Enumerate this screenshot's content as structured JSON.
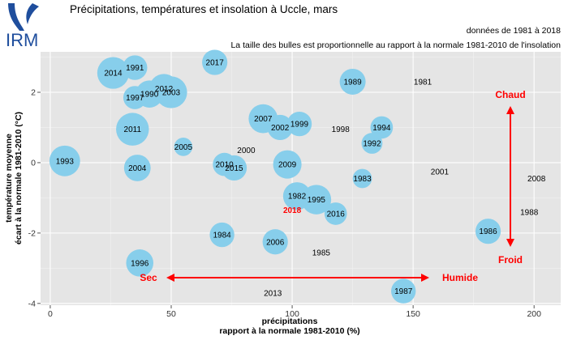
{
  "header": {
    "logo_text": "IRM",
    "title": "Précipitations, températures et insolation à Uccle, mars",
    "note_period": "données de 1981 à 2018",
    "note_bubbles": "La taille des bulles est proportionnelle au rapport à la normale 1981-2010 de l'insolation"
  },
  "colors": {
    "panel": "#e5e5e5",
    "grid": "#ffffff",
    "bubble": "#87ceeb",
    "annotation": "#ff0000",
    "logo": "#1f4e9d"
  },
  "annotations": {
    "chaud": "Chaud",
    "froid": "Froid",
    "sec": "Sec",
    "humide": "Humide"
  },
  "chart_data": {
    "type": "scatter",
    "title": "Précipitations, températures et insolation à Uccle, mars",
    "xlabel_line1": "précipitations",
    "xlabel_line2": "rapport à la normale 1981-2010 (%)",
    "ylabel_line1": "température moyenne",
    "ylabel_line2": "écart à la normale 1981-2010 (°C)",
    "xlim": [
      -4,
      211
    ],
    "ylim": [
      -4.05,
      3.15
    ],
    "xticks": [
      0,
      50,
      100,
      150,
      200
    ],
    "yticks": [
      -4,
      -2,
      0,
      2
    ],
    "grid": true,
    "highlight_year": "2018",
    "points": [
      {
        "label": "1981",
        "x": 154,
        "y": 2.3,
        "sun": 0
      },
      {
        "label": "1982",
        "x": 102,
        "y": -0.95,
        "sun": 115
      },
      {
        "label": "1983",
        "x": 129,
        "y": -0.45,
        "sun": 55
      },
      {
        "label": "1984",
        "x": 71,
        "y": -2.05,
        "sun": 90
      },
      {
        "label": "1985",
        "x": 112,
        "y": -2.55,
        "sun": 0
      },
      {
        "label": "1986",
        "x": 181,
        "y": -1.95,
        "sun": 95
      },
      {
        "label": "1987",
        "x": 146,
        "y": -3.65,
        "sun": 90
      },
      {
        "label": "1988",
        "x": 198,
        "y": -1.4,
        "sun": 0
      },
      {
        "label": "1989",
        "x": 125,
        "y": 2.3,
        "sun": 100
      },
      {
        "label": "1990",
        "x": 41,
        "y": 1.95,
        "sun": 110
      },
      {
        "label": "1991",
        "x": 35,
        "y": 2.7,
        "sun": 90
      },
      {
        "label": "1992",
        "x": 133,
        "y": 0.55,
        "sun": 65
      },
      {
        "label": "1993",
        "x": 6,
        "y": 0.05,
        "sun": 140
      },
      {
        "label": "1994",
        "x": 137,
        "y": 1.0,
        "sun": 75
      },
      {
        "label": "1995",
        "x": 110,
        "y": -1.05,
        "sun": 130
      },
      {
        "label": "1996",
        "x": 37,
        "y": -2.85,
        "sun": 110
      },
      {
        "label": "1997",
        "x": 35,
        "y": 1.85,
        "sun": 80
      },
      {
        "label": "1998",
        "x": 120,
        "y": 0.95,
        "sun": 0
      },
      {
        "label": "1999",
        "x": 103,
        "y": 1.1,
        "sun": 90
      },
      {
        "label": "2000",
        "x": 81,
        "y": 0.35,
        "sun": 0
      },
      {
        "label": "2001",
        "x": 161,
        "y": -0.25,
        "sun": 0
      },
      {
        "label": "2002",
        "x": 95,
        "y": 1.0,
        "sun": 95
      },
      {
        "label": "2003",
        "x": 50,
        "y": 2.0,
        "sun": 150
      },
      {
        "label": "2004",
        "x": 36,
        "y": -0.15,
        "sun": 105
      },
      {
        "label": "2005",
        "x": 55,
        "y": 0.45,
        "sun": 50
      },
      {
        "label": "2006",
        "x": 93,
        "y": -2.25,
        "sun": 95
      },
      {
        "label": "2007",
        "x": 88,
        "y": 1.25,
        "sun": 125
      },
      {
        "label": "2008",
        "x": 201,
        "y": -0.45,
        "sun": 0
      },
      {
        "label": "2009",
        "x": 98,
        "y": -0.05,
        "sun": 120
      },
      {
        "label": "2010",
        "x": 72,
        "y": -0.05,
        "sun": 80
      },
      {
        "label": "2011",
        "x": 34,
        "y": 0.95,
        "sun": 160
      },
      {
        "label": "2012",
        "x": 47,
        "y": 2.1,
        "sun": 130
      },
      {
        "label": "2013",
        "x": 92,
        "y": -3.7,
        "sun": 0
      },
      {
        "label": "2014",
        "x": 26,
        "y": 2.55,
        "sun": 150
      },
      {
        "label": "2015",
        "x": 76,
        "y": -0.15,
        "sun": 95
      },
      {
        "label": "2016",
        "x": 118,
        "y": -1.45,
        "sun": 75
      },
      {
        "label": "2017",
        "x": 68,
        "y": 2.85,
        "sun": 95
      },
      {
        "label": "2018",
        "x": 100,
        "y": -1.35,
        "sun": 0
      }
    ]
  }
}
